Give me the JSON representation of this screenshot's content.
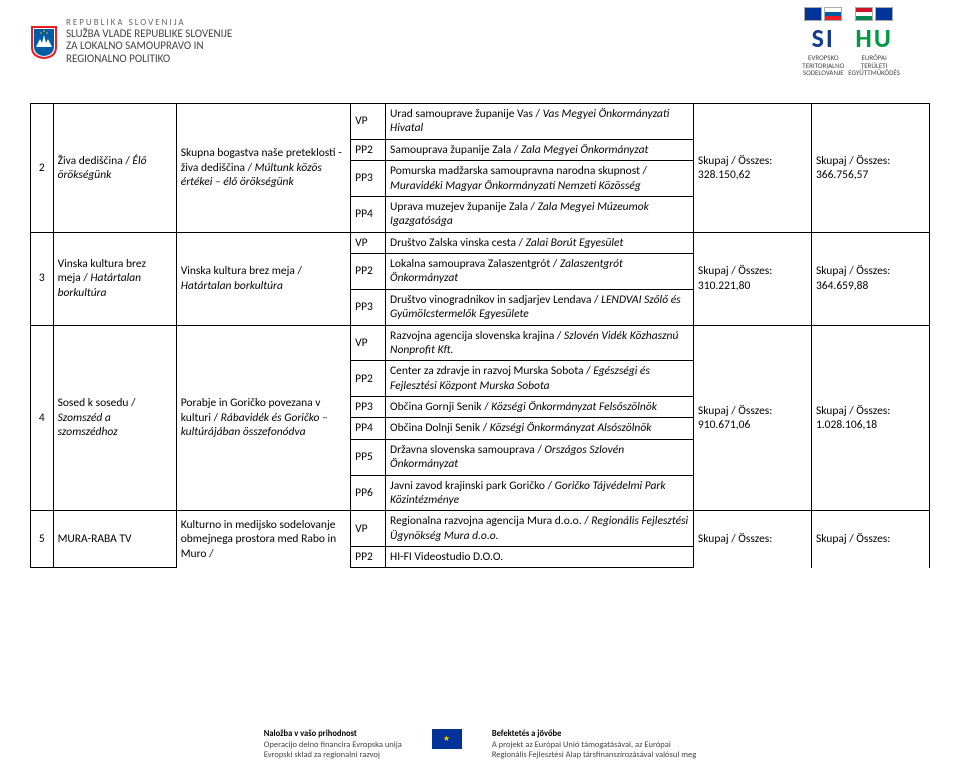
{
  "header": {
    "country": "REPUBLIKA SLOVENIJA",
    "line2": "SLUŽBA VLADE REPUBLIKE SLOVENIJE",
    "line3": "ZA LOKALNO SAMOUPRAVO IN",
    "line4": "REGIONALNO POLITIKO"
  },
  "logos": {
    "si": "SI",
    "hu": "HU",
    "cap_si1": "EVROPSKO",
    "cap_si2": "TERITORIALNO",
    "cap_si3": "SODELOVANJE",
    "cap_hu1": "EURÓPAI",
    "cap_hu2": "TERÜLETI",
    "cap_hu3": "EGYÜTTMŰKÖDÉS"
  },
  "currency_label": "Skupaj / Összes:",
  "rows": [
    {
      "num": "2",
      "name_sl": "Živa dediščina /",
      "name_hu": "Élő örökségünk",
      "desc_sl": "Skupna bogastva naše preteklosti - živa dediščina /",
      "desc_hu": "Múltunk közös értékei – élő örökségünk",
      "codes": [
        "VP",
        "PP2",
        "PP3",
        "PP4"
      ],
      "partners": [
        "Urad samouprave županije Vas / <i>Vas Megyei Önkormányzati Hivatal</i>",
        "Samouprava županije Zala / <i>Zala Megyei Önkormányzat</i>",
        "Pomurska madžarska samoupravna narodna skupnost / <i>Muravidéki Magyar Önkormányzati Nemzeti Közösség</i>",
        "Uprava muzejev županije Zala / <i>Zala Megyei Múzeumok Igazgatósága</i>"
      ],
      "left_val": "328.150,62",
      "right_val": "366.756,57"
    },
    {
      "num": "3",
      "name_sl": "Vinska kultura brez meja /",
      "name_hu": "Határtalan borkultúra",
      "desc_sl": "Vinska kultura brez meja /",
      "desc_hu": "Határtalan borkultúra",
      "codes": [
        "VP",
        "PP2",
        "PP3"
      ],
      "partners": [
        "Društvo Zalska vinska cesta / <i>Zalai Borút Egyesület</i>",
        "Lokalna samouprava Zalaszentgrót / <i>Zalaszentgrót Önkormányzat</i>",
        "Društvo vinogradnikov in sadjarjev Lendava  / <i>LENDVAI Szőlő és Gyümölcstermelők Egyesülete</i>"
      ],
      "left_val": "310.221,80",
      "right_val": "364.659,88"
    },
    {
      "num": "4",
      "name_sl": "Sosed k sosedu /",
      "name_hu": "Szomszéd a szomszédhoz",
      "desc_sl": "Porabje in Goričko povezana v kulturi /",
      "desc_hu": "Rábavidék és Goričko – kultúrájában összefonódva",
      "codes": [
        "VP",
        "PP2",
        "PP3",
        "PP4",
        "PP5",
        "PP6"
      ],
      "partners": [
        "Razvojna agencija slovenska krajina / <i>Szlovén Vidék Közhasznú Nonprofit Kft.</i>",
        "Center za zdravje in razvoj Murska Sobota / <i>Egészségi és Fejlesztési Központ Murska Sobota</i>",
        "Občina Gornji Senik / <i>Községi Önkormányzat Felsőszölnök</i>",
        "Občina Dolnji Senik / <i>Községi Önkormányzat Alsószölnök</i>",
        "Državna slovenska samouprava / <i>Országos Szlovén Önkormányzat</i>",
        "Javni zavod krajinski park Goričko / <i>Goričko Tájvédelmi Park Közintézménye</i>"
      ],
      "left_val": "910.671,06",
      "right_val": "1.028.106,18"
    },
    {
      "num": "5",
      "name_sl": "MURA-RABA TV",
      "name_hu": "",
      "desc_sl": "Kulturno in medijsko sodelovanje obmejnega prostora med Rabo in Muro /",
      "desc_hu": "",
      "codes": [
        "VP",
        "PP2"
      ],
      "partners": [
        "Regionalna razvojna agencija Mura d.o.o. / <i>Regionális Fejlesztési Ügynökség Mura d.o.o.</i>",
        "HI-FI Videostudio D.O.O."
      ],
      "left_val": "",
      "right_val": ""
    }
  ],
  "footer": {
    "left_title": "Naložba v vašo prihodnost",
    "left_l1": "Operacijo delno financira Evropska unija",
    "left_l2": "Evropski sklad za regionalni razvoj",
    "right_title": "Befektetés a jövőbe",
    "right_l1": "A projekt az Európai Unió támogatásával, az Európai",
    "right_l2": "Regionális Fejlesztési Alap társfinanszírozásával valósul meg"
  }
}
